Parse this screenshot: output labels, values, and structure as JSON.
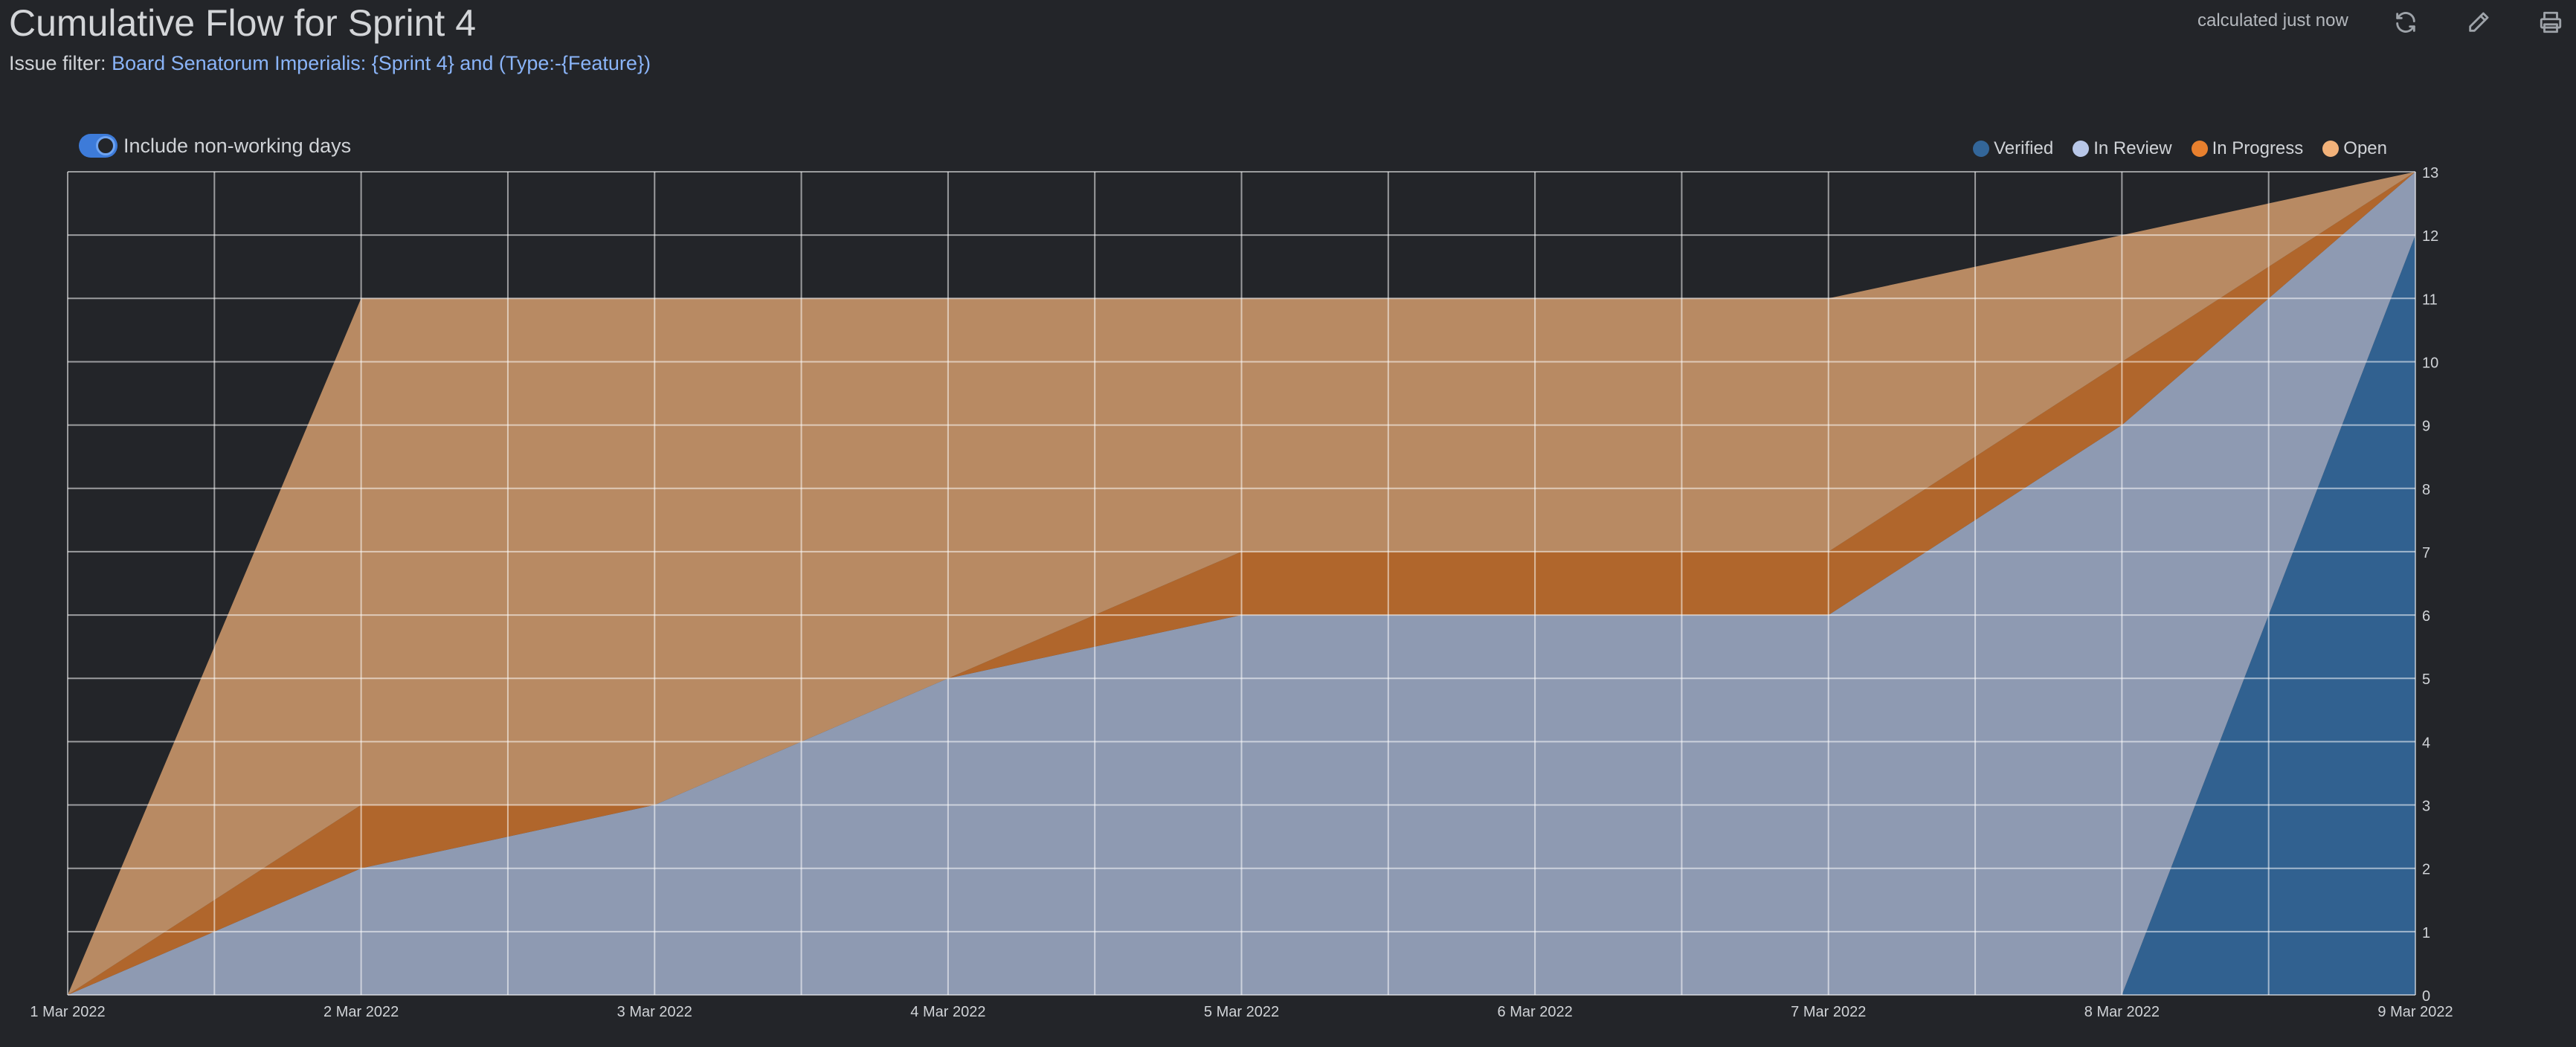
{
  "header": {
    "title": "Cumulative Flow for Sprint 4",
    "filter_label": "Issue filter:",
    "filter_value": "Board Senatorum Imperialis: {Sprint 4} and (Type:-{Feature})",
    "calculated": "calculated just now",
    "icons": [
      "refresh-icon",
      "edit-icon",
      "print-icon"
    ]
  },
  "controls": {
    "include_non_working_days_label": "Include non-working days",
    "include_non_working_days": true
  },
  "colors": {
    "background": "#232529",
    "Verified": "#336699",
    "In Review": "#b8c7e8",
    "In Progress": "#e8802e",
    "Open": "#f2b27a",
    "accent": "#3d7bd9",
    "link": "#8ab4f8"
  },
  "chart_data": {
    "type": "area",
    "stacked": true,
    "x": [
      "1 Mar 2022",
      "2 Mar 2022",
      "3 Mar 2022",
      "4 Mar 2022",
      "5 Mar 2022",
      "6 Mar 2022",
      "7 Mar 2022",
      "8 Mar 2022",
      "9 Mar 2022"
    ],
    "series": [
      {
        "name": "Verified",
        "values": [
          0,
          0,
          0,
          0,
          0,
          0,
          0,
          0,
          12
        ]
      },
      {
        "name": "In Review",
        "values": [
          0,
          2,
          3,
          5,
          6,
          6,
          6,
          9,
          1
        ]
      },
      {
        "name": "In Progress",
        "values": [
          0,
          1,
          0,
          0,
          1,
          1,
          1,
          1,
          0
        ]
      },
      {
        "name": "Open",
        "values": [
          0,
          8,
          8,
          6,
          4,
          4,
          4,
          2,
          0
        ]
      }
    ],
    "cumulative_totals": [
      0,
      11,
      11,
      11,
      11,
      11,
      11,
      12,
      13
    ],
    "ylim": [
      0,
      13
    ],
    "yticks": [
      0,
      1,
      2,
      3,
      4,
      5,
      6,
      7,
      8,
      9,
      10,
      11,
      12,
      13
    ],
    "y_axis_side": "right",
    "grid": true,
    "legend_position": "top-right",
    "title": "",
    "xlabel": "",
    "ylabel": ""
  }
}
